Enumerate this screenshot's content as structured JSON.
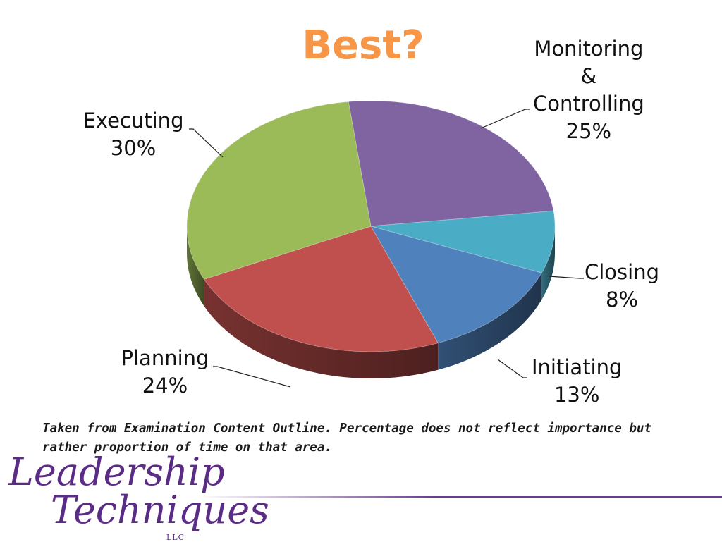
{
  "chart_data": {
    "type": "pie",
    "title": "Best?",
    "slices": [
      {
        "name": "Monitoring & Controlling",
        "lines": [
          "Monitoring",
          "&",
          "Controlling"
        ],
        "value": 25,
        "label": "25%",
        "color": "#8064A2"
      },
      {
        "name": "Closing",
        "lines": [
          "Closing"
        ],
        "value": 8,
        "label": "8%",
        "color": "#4BACC6"
      },
      {
        "name": "Initiating",
        "lines": [
          "Initiating"
        ],
        "value": 13,
        "label": "13%",
        "color": "#4F81BD"
      },
      {
        "name": "Planning",
        "lines": [
          "Planning"
        ],
        "value": 24,
        "label": "24%",
        "color": "#C0504D"
      },
      {
        "name": "Executing",
        "lines": [
          "Executing"
        ],
        "value": 30,
        "label": "30%",
        "color": "#9BBB59"
      }
    ],
    "legend": "none",
    "style": "3d"
  },
  "footnote": "Taken from Examination Content Outline. Percentage does not reflect importance but rather proportion of time on that area.",
  "logo": {
    "line1": "Leadership",
    "line2": "Techniques",
    "suffix": "LLC",
    "color": "#5B2C86"
  }
}
